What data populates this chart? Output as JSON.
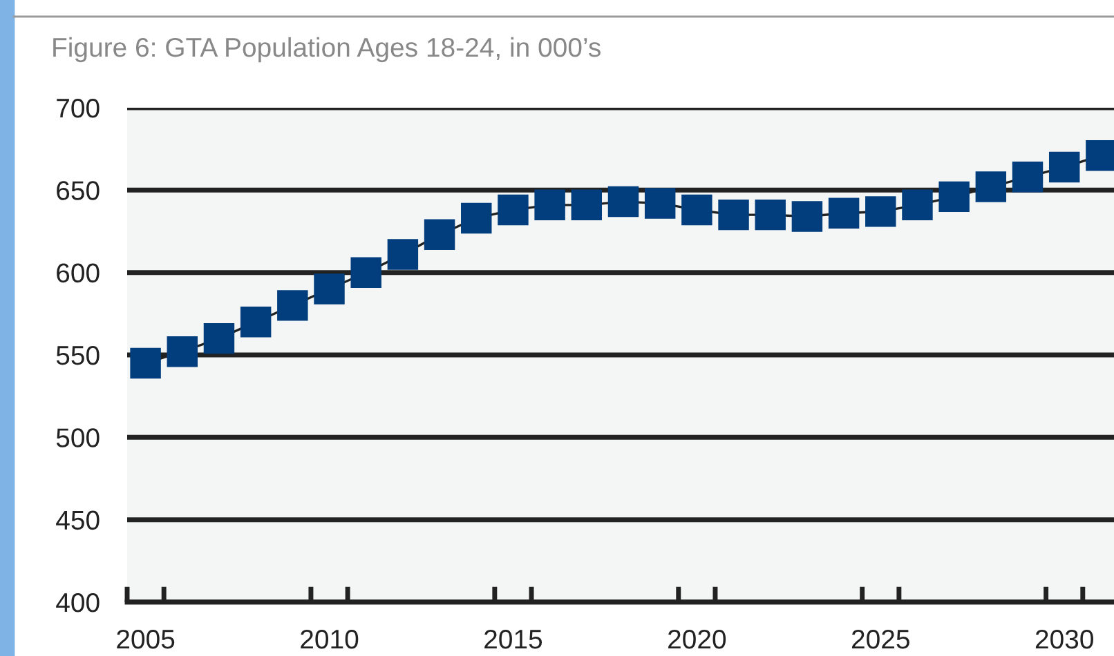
{
  "chart_data": {
    "type": "line",
    "title": "Figure 6: GTA Population Ages 18-24, in 000’s",
    "x": [
      2005,
      2006,
      2007,
      2008,
      2009,
      2010,
      2011,
      2012,
      2013,
      2014,
      2015,
      2016,
      2017,
      2018,
      2019,
      2020,
      2021,
      2022,
      2023,
      2024,
      2025,
      2026,
      2027,
      2028,
      2029,
      2030,
      2031
    ],
    "series": [
      {
        "color": "#023e7d",
        "values": [
          545,
          552,
          560,
          570,
          580,
          590,
          600,
          611,
          623,
          633,
          638,
          641,
          641,
          643,
          642,
          638,
          635,
          635,
          634,
          636,
          637,
          641,
          646,
          652,
          658,
          664,
          671
        ]
      }
    ],
    "xlim": [
      2004.5,
      2031.35
    ],
    "xticks": [
      {
        "value": 2004.5,
        "label": null
      },
      {
        "value": 2005,
        "label": "2005"
      },
      {
        "value": 2005.5,
        "label": null
      },
      {
        "value": 2009.5,
        "label": null
      },
      {
        "value": 2010,
        "label": "2010"
      },
      {
        "value": 2010.5,
        "label": null
      },
      {
        "value": 2014.5,
        "label": null
      },
      {
        "value": 2015,
        "label": "2015"
      },
      {
        "value": 2015.5,
        "label": null
      },
      {
        "value": 2019.5,
        "label": null
      },
      {
        "value": 2020,
        "label": "2020"
      },
      {
        "value": 2020.5,
        "label": null
      },
      {
        "value": 2024.5,
        "label": null
      },
      {
        "value": 2025,
        "label": "2025"
      },
      {
        "value": 2025.5,
        "label": null
      },
      {
        "value": 2029.5,
        "label": null
      },
      {
        "value": 2030,
        "label": "2030"
      },
      {
        "value": 2030.5,
        "label": null
      }
    ],
    "ylim": [
      400,
      700
    ],
    "yticks": [
      400,
      450,
      500,
      550,
      600,
      650,
      700
    ],
    "grid": "y",
    "marker": "square",
    "line_style": "solid",
    "legend": false
  }
}
